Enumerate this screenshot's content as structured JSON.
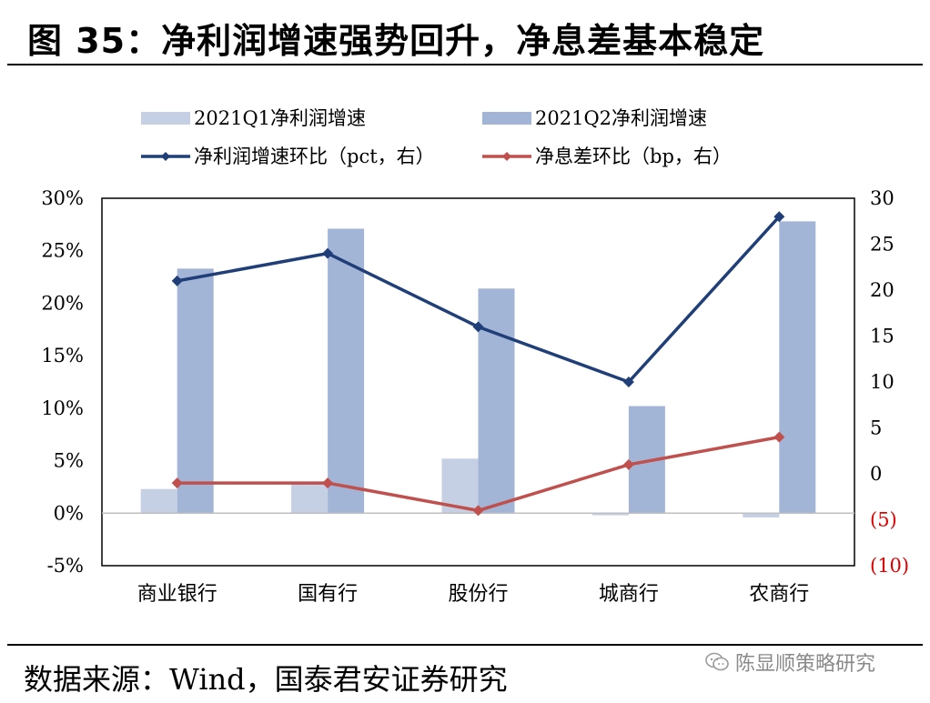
{
  "header": {
    "title": "图 35：净利润增速强势回升，净息差基本稳定"
  },
  "footer": {
    "source": "数据来源：Wind，国泰君安证券研究",
    "watermark": "陈显顺策略研究",
    "watermark_icon": "chat-bubble-icon"
  },
  "colors": {
    "q1_bar": "#c5d0e4",
    "q2_bar": "#a3b5d6",
    "line_pct": "#203f78",
    "line_bp": "#c0504d",
    "negative_tick": "#e00000"
  },
  "chart_data": {
    "type": "bar",
    "categories": [
      "商业银行",
      "国有行",
      "股份行",
      "城商行",
      "农商行"
    ],
    "series": [
      {
        "name": "2021Q1净利润增速",
        "axis": "left",
        "kind": "bar",
        "values": [
          2.3,
          2.8,
          5.2,
          -0.2,
          -0.4
        ]
      },
      {
        "name": "2021Q2净利润增速",
        "axis": "left",
        "kind": "bar",
        "values": [
          23.3,
          27.1,
          21.4,
          10.2,
          27.8
        ]
      },
      {
        "name": "净利润增速环比（pct，右）",
        "axis": "right",
        "kind": "line",
        "values": [
          21.0,
          24.0,
          16.0,
          10.0,
          28.0
        ]
      },
      {
        "name": "净息差环比（bp，右）",
        "axis": "right",
        "kind": "line",
        "values": [
          -1.0,
          -1.0,
          -4.0,
          1.0,
          4.0
        ]
      }
    ],
    "left_axis": {
      "min": -5,
      "max": 30,
      "step": 5,
      "tick_labels": [
        "-5%",
        "0%",
        "5%",
        "10%",
        "15%",
        "20%",
        "25%",
        "30%"
      ]
    },
    "right_axis": {
      "min": -10,
      "max": 30,
      "step": 5,
      "tick_labels": [
        "(10)",
        "(5)",
        "0",
        "5",
        "10",
        "15",
        "20",
        "25",
        "30"
      ]
    },
    "legend": {
      "position": "top",
      "entries": [
        "2021Q1净利润增速",
        "2021Q2净利润增速",
        "净利润增速环比（pct，右）",
        "净息差环比（bp，右）"
      ]
    },
    "grid": false
  }
}
